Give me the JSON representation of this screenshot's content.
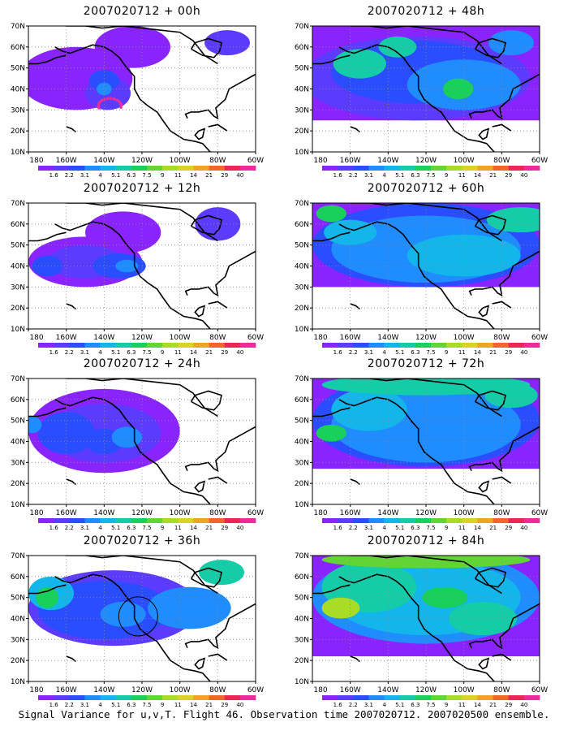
{
  "panels": [
    {
      "title": "2007020712 + 00h",
      "lead_hours": 0
    },
    {
      "title": "2007020712 + 48h",
      "lead_hours": 48
    },
    {
      "title": "2007020712 + 12h",
      "lead_hours": 12
    },
    {
      "title": "2007020712 + 60h",
      "lead_hours": 60
    },
    {
      "title": "2007020712 + 24h",
      "lead_hours": 24
    },
    {
      "title": "2007020712 + 72h",
      "lead_hours": 72
    },
    {
      "title": "2007020712 + 36h",
      "lead_hours": 36
    },
    {
      "title": "2007020712 + 84h",
      "lead_hours": 84
    }
  ],
  "lat_labels": [
    "70N",
    "60N",
    "50N",
    "40N",
    "30N",
    "20N",
    "10N"
  ],
  "lon_labels": [
    "180",
    "160W",
    "140W",
    "120W",
    "100W",
    "80W",
    "60W"
  ],
  "colorbar": {
    "labels": [
      "1.6",
      "2.2",
      "3.1",
      "4",
      "5.1",
      "6.3",
      "7.5",
      "9",
      "11",
      "14",
      "21",
      "29",
      "40"
    ],
    "colors": [
      "#8a24ff",
      "#5b3cff",
      "#2a4dff",
      "#1f8cff",
      "#12b6ea",
      "#14cca8",
      "#18d05a",
      "#62d435",
      "#a9dc24",
      "#dcd223",
      "#efa423",
      "#f3662b",
      "#ee2457",
      "#ee2b9c"
    ]
  },
  "footer": "Signal Variance for u,v,T. Flight 46. Observation time 2007020712. 2007020500 ensemble."
}
